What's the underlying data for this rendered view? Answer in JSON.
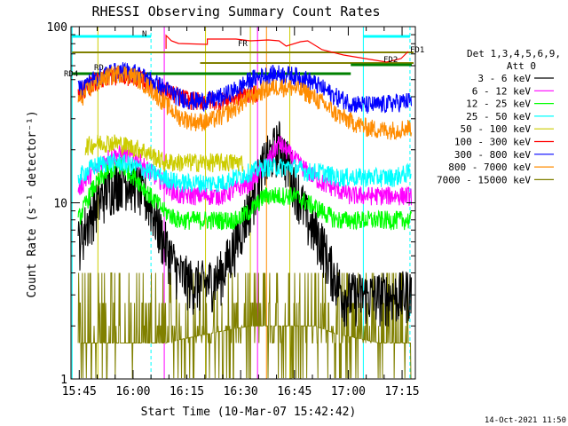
{
  "chart_data": {
    "type": "line",
    "title": "RHESSI Observing Summary Count Rates",
    "xlabel": "Start Time (10-Mar-07 15:42:42)",
    "ylabel": "Count Rate (s⁻¹ detector⁻¹)",
    "footer": "14-Oct-2021 11:50",
    "y_scale": "log",
    "ylim": [
      1,
      100
    ],
    "xlim_minutes": [
      0,
      96
    ],
    "x_ticks": [
      "15:45",
      "16:00",
      "16:15",
      "16:30",
      "16:45",
      "17:00",
      "17:15"
    ],
    "y_ticks": [
      "1",
      "10",
      "100"
    ],
    "legend_header": [
      "Det 1,3,4,5,6,9,",
      "Att 0"
    ],
    "series": [
      {
        "name": "3 - 6 keV",
        "color": "#000000",
        "x": [
          2,
          6,
          10,
          14,
          18,
          22,
          26,
          30,
          34,
          38,
          42,
          46,
          50,
          54,
          58,
          62,
          66,
          70,
          72,
          76,
          80,
          84,
          88,
          92,
          95
        ],
        "y": [
          6,
          9,
          12,
          14,
          13,
          10,
          6,
          4,
          3.5,
          3.5,
          4,
          6,
          10,
          17,
          22,
          14,
          8,
          6,
          4.5,
          3,
          3,
          3,
          3,
          3,
          3.2
        ]
      },
      {
        "name": "6 - 12 keV",
        "color": "#ff00ff",
        "x": [
          2,
          6,
          10,
          14,
          18,
          22,
          26,
          30,
          34,
          38,
          42,
          46,
          50,
          54,
          58,
          62,
          66,
          70,
          74,
          78,
          82,
          86,
          90,
          95
        ],
        "y": [
          12,
          15,
          18,
          19,
          18,
          15,
          13,
          11,
          11,
          11,
          11,
          12,
          13,
          16,
          22,
          18,
          15,
          13,
          12,
          11,
          11,
          11,
          11,
          11
        ]
      },
      {
        "name": "12 - 25 keV",
        "color": "#00ff00",
        "x": [
          2,
          6,
          10,
          14,
          18,
          22,
          26,
          30,
          34,
          38,
          42,
          46,
          50,
          54,
          58,
          62,
          66,
          70,
          74,
          78,
          82,
          86,
          90,
          95
        ],
        "y": [
          8,
          12,
          15,
          16,
          14,
          11,
          9,
          8,
          8,
          8,
          8,
          8,
          9,
          11,
          11,
          11,
          10,
          9,
          8,
          8,
          8,
          8,
          8,
          8
        ]
      },
      {
        "name": "25 - 50 keV",
        "color": "#00ffff",
        "x": [
          2,
          6,
          10,
          14,
          18,
          22,
          26,
          30,
          34,
          38,
          42,
          46,
          50,
          54,
          58,
          62,
          66,
          70,
          74,
          78,
          82,
          86,
          90,
          95
        ],
        "y": [
          14,
          16,
          17,
          17,
          16,
          15,
          14,
          13,
          13,
          13,
          13,
          14,
          15,
          16,
          16,
          16,
          15,
          15,
          14,
          14,
          14,
          14,
          14,
          15
        ]
      },
      {
        "name": "50 - 100 keV",
        "color": "#cccc00",
        "x": [
          4,
          8,
          12,
          16,
          20,
          24,
          26,
          30,
          34,
          38,
          42,
          46,
          48
        ],
        "y": [
          21,
          22,
          22,
          21,
          20,
          18,
          17,
          17,
          17,
          17,
          17,
          17,
          17
        ]
      },
      {
        "name": "100 - 300 keV",
        "color": "#ff0000",
        "x": [
          2,
          6,
          10,
          14,
          18,
          22,
          26,
          30,
          34,
          38,
          42,
          46,
          50,
          52
        ],
        "y": [
          42,
          48,
          52,
          53,
          52,
          48,
          44,
          40,
          38,
          38,
          38,
          40,
          42,
          42
        ]
      },
      {
        "name": "300 - 800 keV",
        "color": "#0000ff",
        "x": [
          2,
          6,
          10,
          14,
          18,
          22,
          26,
          30,
          34,
          38,
          42,
          46,
          50,
          54,
          58,
          62,
          66,
          70,
          74,
          78,
          82,
          86,
          90,
          95
        ],
        "y": [
          44,
          50,
          55,
          56,
          55,
          50,
          45,
          40,
          38,
          38,
          40,
          44,
          50,
          53,
          54,
          53,
          50,
          45,
          40,
          37,
          36,
          36,
          37,
          38
        ]
      },
      {
        "name": "800 - 7000 keV",
        "color": "#ff8c00",
        "x": [
          2,
          6,
          10,
          14,
          18,
          22,
          26,
          30,
          34,
          38,
          42,
          46,
          50,
          54,
          58,
          62,
          66,
          70,
          74,
          78,
          82,
          86,
          90,
          95
        ],
        "y": [
          38,
          46,
          52,
          55,
          52,
          45,
          37,
          31,
          29,
          29,
          31,
          35,
          40,
          44,
          46,
          45,
          42,
          37,
          32,
          29,
          27,
          26,
          26,
          27
        ]
      },
      {
        "name": "7000 - 15000 keV",
        "color": "#808000",
        "x": [
          2,
          8,
          14,
          20,
          26,
          32,
          38,
          44,
          50,
          56,
          62,
          68,
          74,
          80,
          86,
          92,
          95
        ],
        "y": [
          1.6,
          1.6,
          1.6,
          1.6,
          1.6,
          1.7,
          1.8,
          1.9,
          2.0,
          2.0,
          2.0,
          2.0,
          1.8,
          1.7,
          1.6,
          1.6,
          1.6
        ]
      }
    ],
    "annotations": [
      {
        "text": "N",
        "color": "#00ffff"
      },
      {
        "text": "FR",
        "color": "#ff0000"
      },
      {
        "text": "FD1",
        "color": "#808000"
      },
      {
        "text": "FD2",
        "color": "#808000"
      },
      {
        "text": "RD4",
        "color": "#008000"
      },
      {
        "text": "RD",
        "color": "#008000"
      }
    ]
  }
}
